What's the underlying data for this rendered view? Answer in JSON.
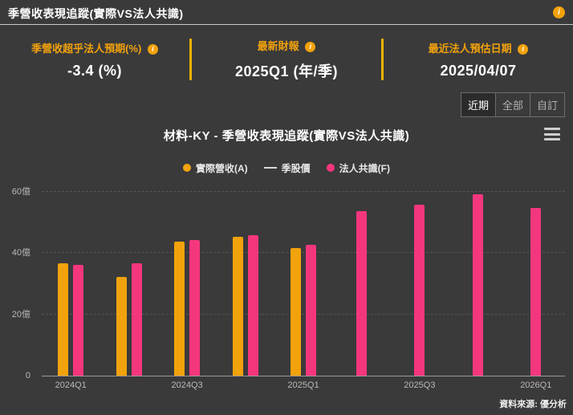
{
  "header": {
    "title": "季營收表現追蹤(實際VS法人共識)"
  },
  "icons": {
    "info_glyph": "i"
  },
  "stats": [
    {
      "label": "季營收超乎法人預期(%)",
      "value": "-3.4 (%)"
    },
    {
      "label": "最新財報",
      "value": "2025Q1 (年/季)"
    },
    {
      "label": "最近法人預估日期",
      "value": "2025/04/07"
    }
  ],
  "range_buttons": [
    {
      "label": "近期",
      "active": true
    },
    {
      "label": "全部",
      "active": false
    },
    {
      "label": "自訂",
      "active": false
    }
  ],
  "chart": {
    "title": "材料-KY - 季營收表現追蹤(實際VS法人共識)"
  },
  "source": "資料來源: 優分析",
  "colors": {
    "accent_orange": "#f2a20c",
    "bar_pink": "#f4367d",
    "divider_yellow": "#f5b301",
    "background": "#3a3a3b"
  },
  "chart_data": {
    "type": "bar",
    "title": "材料-KY - 季營收表現追蹤(實際VS法人共識)",
    "categories": [
      "2024Q1",
      "2024Q2",
      "2024Q3",
      "2024Q4",
      "2025Q1",
      "2025Q2",
      "2025Q3",
      "2025Q4",
      "2026Q1"
    ],
    "x_tick_indices": [
      0,
      2,
      4,
      6,
      8
    ],
    "x_tick_labels": [
      "2024Q1",
      "2024Q3",
      "2025Q1",
      "2025Q3",
      "2026Q1"
    ],
    "series": [
      {
        "key": "actual",
        "name": "實際營收(A)",
        "type": "bar",
        "color": "#f2a20c",
        "values": [
          36.5,
          32,
          43.5,
          45,
          41.5,
          null,
          null,
          null,
          null
        ]
      },
      {
        "key": "price",
        "name": "季股價",
        "type": "line",
        "color": "#d8d8d8",
        "values": []
      },
      {
        "key": "consensus",
        "name": "法人共識(F)",
        "type": "bar",
        "color": "#f4367d",
        "values": [
          36,
          36.5,
          44,
          45.5,
          42.5,
          53.5,
          55.5,
          59,
          54.5
        ]
      }
    ],
    "yticks": [
      0,
      20,
      40,
      60
    ],
    "ytick_labels": [
      "0",
      "20億",
      "40億",
      "60億"
    ],
    "ylim": [
      0,
      62
    ],
    "unit": "億",
    "grid": "dashed-horizontal",
    "legend_position": "top-center"
  }
}
